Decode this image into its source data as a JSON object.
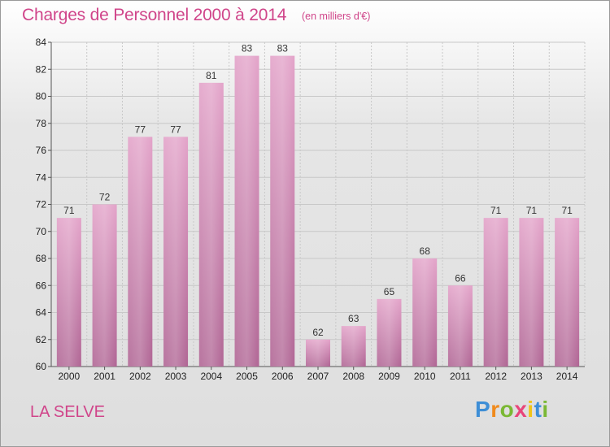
{
  "chart_data": {
    "type": "bar",
    "title": "Charges de Personnel 2000 à 2014",
    "subtitle": "(en milliers d'€)",
    "xlabel": "",
    "ylabel": "",
    "categories": [
      "2000",
      "2001",
      "2002",
      "2003",
      "2004",
      "2005",
      "2006",
      "2007",
      "2008",
      "2009",
      "2010",
      "2011",
      "2012",
      "2013",
      "2014"
    ],
    "values": [
      71,
      72,
      77,
      77,
      81,
      83,
      83,
      62,
      63,
      65,
      68,
      66,
      71,
      71,
      71
    ],
    "ylim": [
      60,
      84
    ],
    "yticks": [
      60,
      62,
      64,
      66,
      68,
      70,
      72,
      74,
      76,
      78,
      80,
      82,
      84
    ],
    "grid": true,
    "legend": "none",
    "bar_color": "#d98ab8"
  },
  "commune": "LA SELVE",
  "brand": {
    "letters": [
      "P",
      "r",
      "o",
      "x",
      "i",
      "t",
      "i"
    ],
    "colors": [
      "#3e8ed6",
      "#f08a1c",
      "#7ab834",
      "#e8457a",
      "#f0c419",
      "#3e8ed6",
      "#7ab834"
    ]
  },
  "colors": {
    "accent": "#d0458a",
    "grid": "#c8c8c8"
  }
}
